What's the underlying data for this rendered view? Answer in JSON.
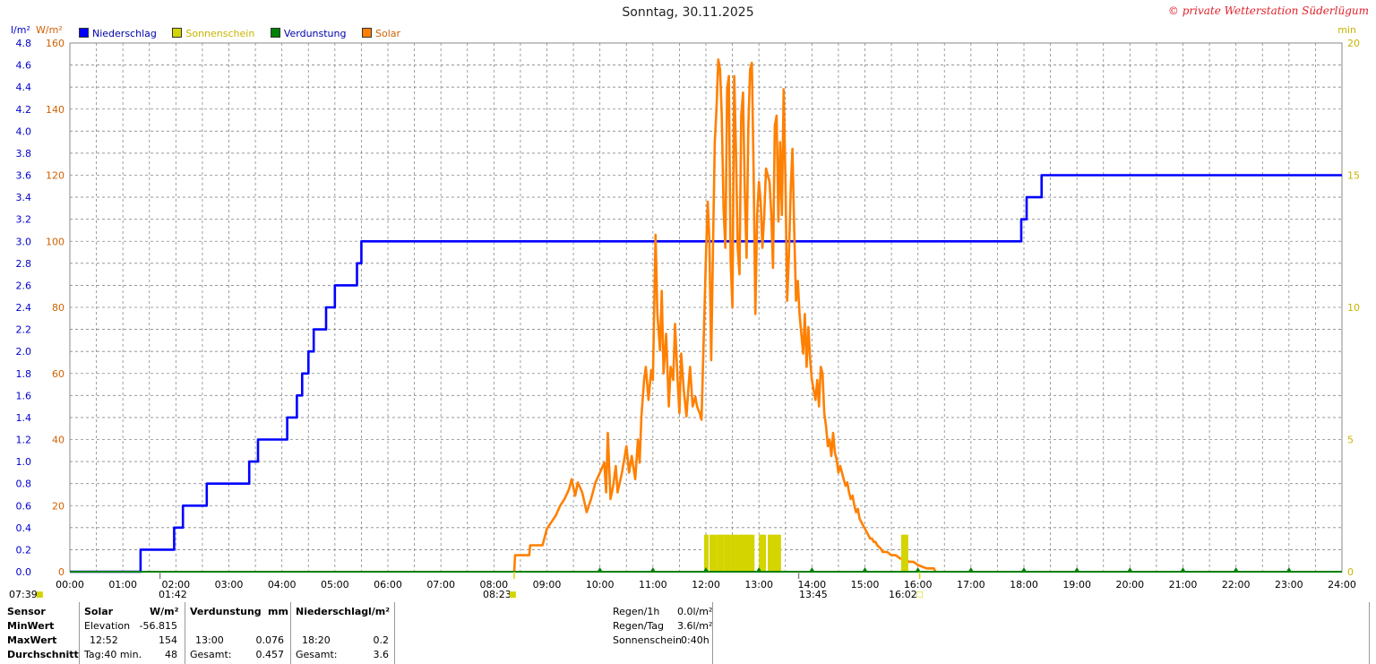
{
  "header": {
    "title": "Sonntag, 30.11.2025",
    "credit": "© private Wetterstation Süderlügum",
    "unit_rain": "l/m²",
    "unit_solar": "W/m²",
    "unit_min": "min"
  },
  "legend": [
    {
      "label": "Niederschlag",
      "color": "#0000ff"
    },
    {
      "label": "Sonnenschein",
      "color": "#d4d400"
    },
    {
      "label": "Verdunstung",
      "color": "#008000"
    },
    {
      "label": "Solar",
      "color": "#ff8000"
    }
  ],
  "events": {
    "sunrise": "07:39",
    "min_solar_time": "01:42",
    "solar_start": "08:23",
    "solar_peak_mark": "13:45",
    "sunset": "16:02"
  },
  "chart_data": {
    "type": "line",
    "title": "Sonntag, 30.11.2025",
    "x_ticks": [
      "00:00",
      "01:00",
      "02:00",
      "03:00",
      "04:00",
      "05:00",
      "06:00",
      "07:00",
      "08:00",
      "09:00",
      "10:00",
      "11:00",
      "12:00",
      "13:00",
      "14:00",
      "15:00",
      "16:00",
      "17:00",
      "18:00",
      "19:00",
      "20:00",
      "21:00",
      "22:00",
      "23:00",
      "24:00"
    ],
    "y_left_rain": {
      "label": "l/m²",
      "range": [
        0,
        4.8
      ],
      "ticks": [
        "0.0",
        "0.2",
        "0.4",
        "0.6",
        "0.8",
        "1.0",
        "1.2",
        "1.4",
        "1.6",
        "1.8",
        "2.0",
        "2.2",
        "2.4",
        "2.6",
        "2.8",
        "3.0",
        "3.2",
        "3.4",
        "3.6",
        "3.8",
        "4.0",
        "4.2",
        "4.4",
        "4.6",
        "4.8"
      ]
    },
    "y_left_solar": {
      "label": "W/m²",
      "range": [
        0,
        160
      ],
      "ticks": [
        "0",
        "20",
        "40",
        "60",
        "80",
        "100",
        "120",
        "140",
        "160"
      ]
    },
    "y_right": {
      "label": "min",
      "range": [
        0,
        20
      ],
      "ticks": [
        "0",
        "5",
        "10",
        "15",
        "20"
      ]
    },
    "grid": true,
    "legend_position": "top-left",
    "series": [
      {
        "name": "Niederschlag",
        "axis": "rain",
        "color": "#0000ff",
        "step": true,
        "points": [
          [
            "00:00",
            0.0
          ],
          [
            "01:20",
            0.0
          ],
          [
            "01:20",
            0.2
          ],
          [
            "01:58",
            0.2
          ],
          [
            "01:58",
            0.4
          ],
          [
            "02:08",
            0.4
          ],
          [
            "02:08",
            0.6
          ],
          [
            "02:35",
            0.6
          ],
          [
            "02:35",
            0.8
          ],
          [
            "03:23",
            0.8
          ],
          [
            "03:23",
            1.0
          ],
          [
            "03:33",
            1.0
          ],
          [
            "03:33",
            1.2
          ],
          [
            "04:06",
            1.2
          ],
          [
            "04:06",
            1.4
          ],
          [
            "04:17",
            1.4
          ],
          [
            "04:17",
            1.6
          ],
          [
            "04:23",
            1.6
          ],
          [
            "04:23",
            1.8
          ],
          [
            "04:30",
            1.8
          ],
          [
            "04:30",
            2.0
          ],
          [
            "04:36",
            2.0
          ],
          [
            "04:36",
            2.2
          ],
          [
            "04:50",
            2.2
          ],
          [
            "04:50",
            2.4
          ],
          [
            "05:00",
            2.4
          ],
          [
            "05:00",
            2.6
          ],
          [
            "05:25",
            2.6
          ],
          [
            "05:25",
            2.8
          ],
          [
            "05:30",
            2.8
          ],
          [
            "05:30",
            3.0
          ],
          [
            "17:57",
            3.0
          ],
          [
            "17:57",
            3.2
          ],
          [
            "18:03",
            3.2
          ],
          [
            "18:03",
            3.4
          ],
          [
            "18:20",
            3.4
          ],
          [
            "18:20",
            3.6
          ],
          [
            "24:00",
            3.6
          ]
        ]
      },
      {
        "name": "Solar",
        "axis": "solar",
        "color": "#ff8000",
        "points": [
          [
            "08:23",
            0
          ],
          [
            "08:24",
            5
          ],
          [
            "08:40",
            5
          ],
          [
            "08:41",
            8
          ],
          [
            "08:55",
            8
          ],
          [
            "09:00",
            13
          ],
          [
            "09:10",
            17
          ],
          [
            "09:15",
            20
          ],
          [
            "09:20",
            22
          ],
          [
            "09:25",
            25
          ],
          [
            "09:28",
            28
          ],
          [
            "09:32",
            23
          ],
          [
            "09:35",
            27
          ],
          [
            "09:40",
            24
          ],
          [
            "09:45",
            18
          ],
          [
            "09:50",
            22
          ],
          [
            "09:55",
            27
          ],
          [
            "10:00",
            30
          ],
          [
            "10:05",
            33
          ],
          [
            "10:07",
            24
          ],
          [
            "10:09",
            42
          ],
          [
            "10:12",
            22
          ],
          [
            "10:15",
            26
          ],
          [
            "10:18",
            32
          ],
          [
            "10:20",
            24
          ],
          [
            "10:25",
            30
          ],
          [
            "10:30",
            38
          ],
          [
            "10:33",
            30
          ],
          [
            "10:36",
            35
          ],
          [
            "10:40",
            28
          ],
          [
            "10:43",
            40
          ],
          [
            "10:45",
            33
          ],
          [
            "10:47",
            47
          ],
          [
            "10:50",
            58
          ],
          [
            "10:52",
            62
          ],
          [
            "10:55",
            52
          ],
          [
            "10:58",
            61
          ],
          [
            "11:00",
            58
          ],
          [
            "11:03",
            102
          ],
          [
            "11:05",
            78
          ],
          [
            "11:08",
            67
          ],
          [
            "11:10",
            85
          ],
          [
            "11:12",
            60
          ],
          [
            "11:15",
            72
          ],
          [
            "11:18",
            50
          ],
          [
            "11:20",
            62
          ],
          [
            "11:23",
            58
          ],
          [
            "11:25",
            75
          ],
          [
            "11:28",
            58
          ],
          [
            "11:30",
            48
          ],
          [
            "11:32",
            66
          ],
          [
            "11:35",
            55
          ],
          [
            "11:38",
            47
          ],
          [
            "11:40",
            55
          ],
          [
            "11:42",
            62
          ],
          [
            "11:45",
            50
          ],
          [
            "11:48",
            53
          ],
          [
            "11:50",
            50
          ],
          [
            "11:53",
            48
          ],
          [
            "11:55",
            46
          ],
          [
            "11:57",
            65
          ],
          [
            "12:00",
            95
          ],
          [
            "12:02",
            112
          ],
          [
            "12:04",
            100
          ],
          [
            "12:06",
            64
          ],
          [
            "12:08",
            98
          ],
          [
            "12:10",
            130
          ],
          [
            "12:12",
            140
          ],
          [
            "12:14",
            155
          ],
          [
            "12:16",
            152
          ],
          [
            "12:18",
            138
          ],
          [
            "12:20",
            110
          ],
          [
            "12:22",
            98
          ],
          [
            "12:24",
            146
          ],
          [
            "12:26",
            150
          ],
          [
            "12:28",
            94
          ],
          [
            "12:30",
            80
          ],
          [
            "12:32",
            150
          ],
          [
            "12:34",
            128
          ],
          [
            "12:36",
            98
          ],
          [
            "12:38",
            90
          ],
          [
            "12:40",
            138
          ],
          [
            "12:42",
            145
          ],
          [
            "12:44",
            115
          ],
          [
            "12:46",
            95
          ],
          [
            "12:48",
            134
          ],
          [
            "12:50",
            152
          ],
          [
            "12:52",
            154
          ],
          [
            "12:54",
            120
          ],
          [
            "12:56",
            78
          ],
          [
            "12:58",
            108
          ],
          [
            "13:00",
            118
          ],
          [
            "13:02",
            112
          ],
          [
            "13:04",
            98
          ],
          [
            "13:06",
            108
          ],
          [
            "13:08",
            122
          ],
          [
            "13:10",
            120
          ],
          [
            "13:12",
            118
          ],
          [
            "13:14",
            108
          ],
          [
            "13:16",
            92
          ],
          [
            "13:18",
            135
          ],
          [
            "13:20",
            138
          ],
          [
            "13:22",
            106
          ],
          [
            "13:24",
            130
          ],
          [
            "13:26",
            108
          ],
          [
            "13:28",
            146
          ],
          [
            "13:30",
            118
          ],
          [
            "13:32",
            82
          ],
          [
            "13:34",
            96
          ],
          [
            "13:36",
            116
          ],
          [
            "13:38",
            128
          ],
          [
            "13:40",
            103
          ],
          [
            "13:42",
            82
          ],
          [
            "13:44",
            88
          ],
          [
            "13:46",
            78
          ],
          [
            "13:48",
            72
          ],
          [
            "13:50",
            66
          ],
          [
            "13:52",
            78
          ],
          [
            "13:54",
            62
          ],
          [
            "13:56",
            74
          ],
          [
            "13:58",
            64
          ],
          [
            "14:00",
            58
          ],
          [
            "14:02",
            55
          ],
          [
            "14:04",
            52
          ],
          [
            "14:06",
            58
          ],
          [
            "14:08",
            50
          ],
          [
            "14:10",
            62
          ],
          [
            "14:12",
            60
          ],
          [
            "14:14",
            48
          ],
          [
            "14:16",
            44
          ],
          [
            "14:18",
            38
          ],
          [
            "14:20",
            40
          ],
          [
            "14:22",
            35
          ],
          [
            "14:24",
            42
          ],
          [
            "14:26",
            36
          ],
          [
            "14:28",
            34
          ],
          [
            "14:30",
            30
          ],
          [
            "14:32",
            32
          ],
          [
            "14:34",
            30
          ],
          [
            "14:36",
            28
          ],
          [
            "14:38",
            26
          ],
          [
            "14:40",
            27
          ],
          [
            "14:42",
            24
          ],
          [
            "14:44",
            22
          ],
          [
            "14:46",
            23
          ],
          [
            "14:48",
            20
          ],
          [
            "14:50",
            18
          ],
          [
            "14:52",
            19
          ],
          [
            "14:54",
            16
          ],
          [
            "14:56",
            15
          ],
          [
            "14:58",
            14
          ],
          [
            "15:00",
            13
          ],
          [
            "15:02",
            12
          ],
          [
            "15:04",
            11
          ],
          [
            "15:06",
            10
          ],
          [
            "15:08",
            10
          ],
          [
            "15:10",
            9
          ],
          [
            "15:12",
            9
          ],
          [
            "15:14",
            8
          ],
          [
            "15:18",
            7
          ],
          [
            "15:20",
            6
          ],
          [
            "15:25",
            6
          ],
          [
            "15:30",
            5
          ],
          [
            "15:35",
            5
          ],
          [
            "15:40",
            4
          ],
          [
            "15:45",
            4
          ],
          [
            "15:50",
            3
          ],
          [
            "15:55",
            3
          ],
          [
            "16:00",
            2
          ],
          [
            "16:05",
            1.5
          ],
          [
            "16:10",
            1
          ],
          [
            "16:18",
            1
          ],
          [
            "16:20",
            0
          ]
        ]
      },
      {
        "name": "Sonnenschein",
        "axis": "min",
        "color": "#d4d400",
        "type": "bars",
        "points": [
          [
            "12:00",
            1
          ],
          [
            "12:06",
            1
          ],
          [
            "12:10",
            1
          ],
          [
            "12:15",
            1
          ],
          [
            "12:18",
            1
          ],
          [
            "12:23",
            1
          ],
          [
            "12:25",
            1
          ],
          [
            "12:30",
            1
          ],
          [
            "12:35",
            1
          ],
          [
            "12:40",
            1
          ],
          [
            "12:42",
            1
          ],
          [
            "12:46",
            1
          ],
          [
            "12:48",
            1
          ],
          [
            "12:52",
            1
          ],
          [
            "13:02",
            1
          ],
          [
            "13:05",
            1
          ],
          [
            "13:12",
            1
          ],
          [
            "13:15",
            1
          ],
          [
            "13:18",
            1
          ],
          [
            "13:22",
            1
          ],
          [
            "15:43",
            1
          ],
          [
            "15:46",
            1
          ]
        ]
      },
      {
        "name": "Verdunstung",
        "axis": "min",
        "color": "#008000",
        "type": "markers",
        "points": [
          [
            "10:00",
            0.1
          ],
          [
            "11:00",
            0.1
          ],
          [
            "12:00",
            0.1
          ],
          [
            "13:00",
            0.1
          ],
          [
            "14:00",
            0.1
          ],
          [
            "15:00",
            0.1
          ],
          [
            "16:00",
            0.1
          ],
          [
            "17:00",
            0.1
          ],
          [
            "18:00",
            0.1
          ],
          [
            "19:00",
            0.1
          ],
          [
            "20:00",
            0.1
          ],
          [
            "21:00",
            0.1
          ],
          [
            "22:00",
            0.1
          ],
          [
            "23:00",
            0.1
          ]
        ]
      }
    ]
  },
  "table": {
    "headers": {
      "sensor": "Sensor",
      "solar": "Solar",
      "solar_unit": "W/m²",
      "evap": "Verdunstung",
      "evap_unit": "mm",
      "rain": "Niederschlag",
      "rain_unit": "l/m²"
    },
    "rows": [
      {
        "label": "MinWert",
        "solar_a": "Elevation",
        "solar_b": "-56.815",
        "evap_a": "",
        "evap_b": "",
        "rain_a": "",
        "rain_b": ""
      },
      {
        "label": "MaxWert",
        "solar_a": "12:52",
        "solar_b": "154",
        "evap_a": "13:00",
        "evap_b": "0.076",
        "rain_a": "18:20",
        "rain_b": "0.2"
      },
      {
        "label": "Durchschnitt",
        "solar_a": "Tag:40 min.",
        "solar_b": "48",
        "evap_a": "Gesamt:",
        "evap_b": "0.457",
        "rain_a": "Gesamt:",
        "rain_b": "3.6"
      }
    ],
    "summary": [
      {
        "label": "Regen/1h",
        "value": "0.0l/m²"
      },
      {
        "label": "Regen/Tag",
        "value": "3.6l/m²"
      },
      {
        "label": "Sonnenschein",
        "value": "0:40h"
      }
    ]
  }
}
